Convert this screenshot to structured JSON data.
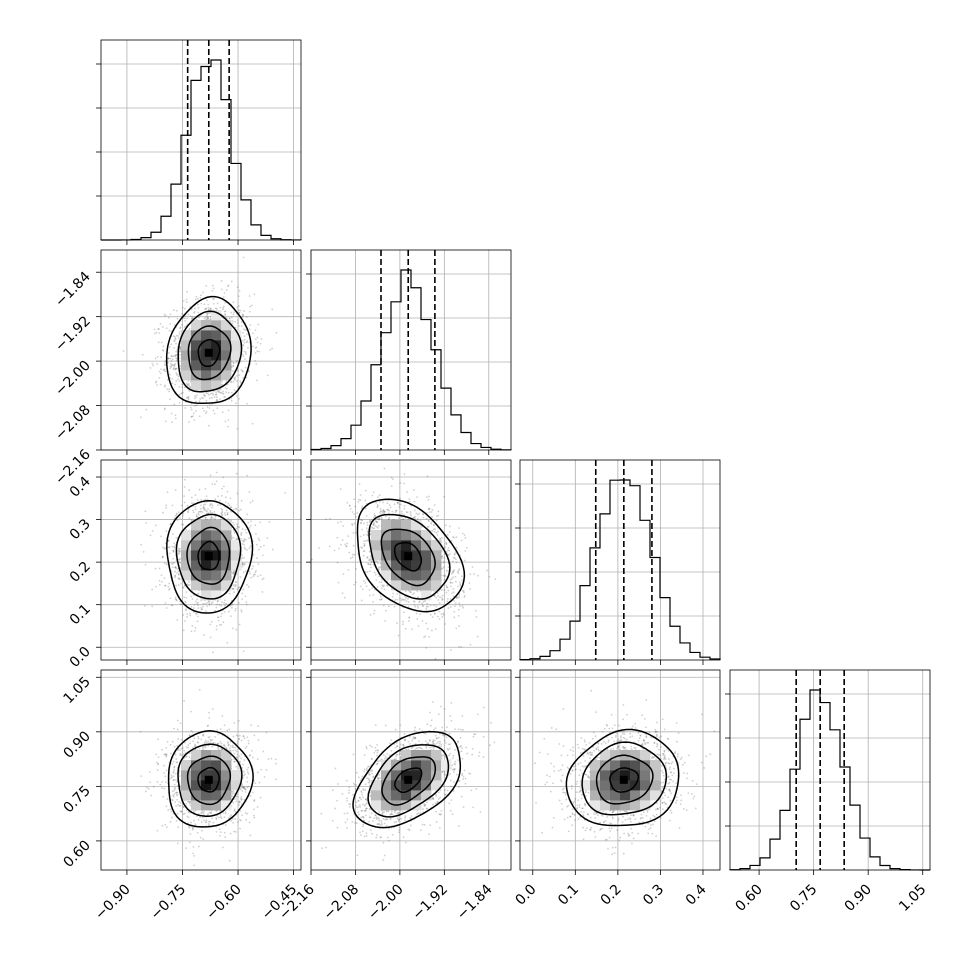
{
  "chart_data": {
    "type": "corner",
    "title": "",
    "parameters": [
      {
        "label": "",
        "range": [
          -0.97,
          -0.43
        ],
        "ticks": [
          -0.9,
          -0.75,
          -0.6,
          -0.45
        ],
        "tick_labels": [
          "−0.90",
          "−0.75",
          "−0.60",
          "−0.45"
        ],
        "mean": -0.679,
        "std": 0.057,
        "quantiles": [
          -0.736,
          -0.679,
          -0.624
        ]
      },
      {
        "label": "",
        "range": [
          -2.16,
          -1.8
        ],
        "ticks": [
          -2.16,
          -2.08,
          -2.0,
          -1.92,
          -1.84
        ],
        "tick_labels": [
          "−2.16",
          "−2.08",
          "−2.00",
          "−1.92",
          "−1.84"
        ],
        "mean": -1.985,
        "std": 0.048,
        "quantiles": [
          -2.034,
          -1.985,
          -1.937
        ]
      },
      {
        "label": "",
        "range": [
          -0.03,
          0.44
        ],
        "ticks": [
          0.0,
          0.1,
          0.2,
          0.3,
          0.4
        ],
        "tick_labels": [
          "0.0",
          "0.1",
          "0.2",
          "0.3",
          "0.4"
        ],
        "mean": 0.214,
        "std": 0.066,
        "quantiles": [
          0.148,
          0.214,
          0.28
        ]
      },
      {
        "label": "",
        "range": [
          0.52,
          1.07
        ],
        "ticks": [
          0.6,
          0.75,
          0.9,
          1.05
        ],
        "tick_labels": [
          "0.60",
          "0.75",
          "0.90",
          "1.05"
        ],
        "mean": 0.768,
        "std": 0.066,
        "quantiles": [
          0.702,
          0.768,
          0.834
        ]
      }
    ],
    "correlations": {
      "0-1": 0.1,
      "0-2": 0.02,
      "0-3": 0.05,
      "1-2": -0.35,
      "1-3": 0.45,
      "2-3": 0.1
    },
    "contour_levels_sigma": [
      0.5,
      1.0,
      1.5,
      2.0
    ],
    "grid": true,
    "colors": {
      "lines": "#000000",
      "grid": "#b0b0b0",
      "points": "#555555"
    }
  }
}
